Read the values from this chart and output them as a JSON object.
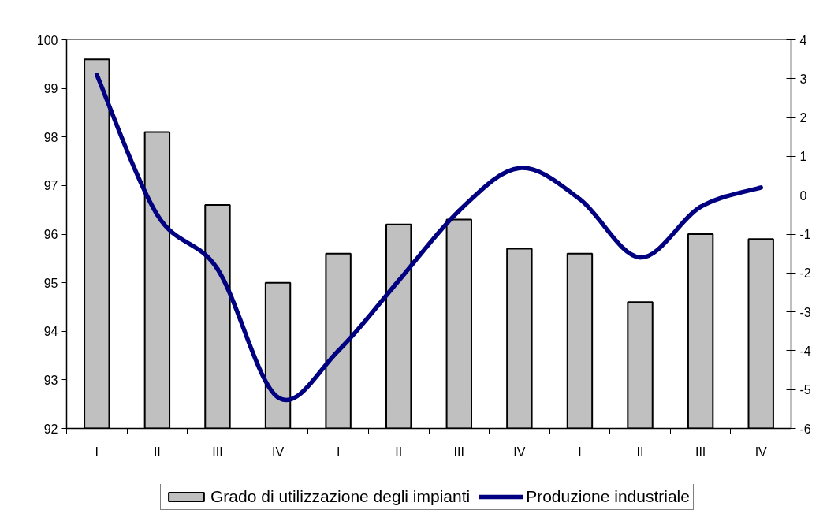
{
  "chart_data": {
    "type": "bar",
    "categories": [
      "I",
      "II",
      "III",
      "IV",
      "I",
      "II",
      "III",
      "IV",
      "I",
      "II",
      "III",
      "IV"
    ],
    "series": [
      {
        "name": "Grado di utilizzazione degli impianti",
        "color": "#c0c0c0",
        "values": [
          99.6,
          98.1,
          96.6,
          95.0,
          95.6,
          96.2,
          96.3,
          95.7,
          95.6,
          94.6,
          96.0,
          95.9
        ]
      },
      {
        "name": "Produzione industriale",
        "type": "line",
        "color": "#000080",
        "axis": "y2",
        "values": [
          3.1,
          -0.5,
          -1.9,
          -5.2,
          -4.0,
          -2.2,
          -0.4,
          0.7,
          -0.1,
          -1.6,
          -0.3,
          0.2
        ]
      }
    ],
    "ylim": [
      92,
      100
    ],
    "yticks": [
      92,
      93,
      94,
      95,
      96,
      97,
      98,
      99,
      100
    ],
    "y2lim": [
      -6,
      4
    ],
    "y2ticks": [
      -6,
      -5,
      -4,
      -3,
      -2,
      -1,
      0,
      1,
      2,
      3,
      4
    ],
    "legend": "bottom"
  }
}
